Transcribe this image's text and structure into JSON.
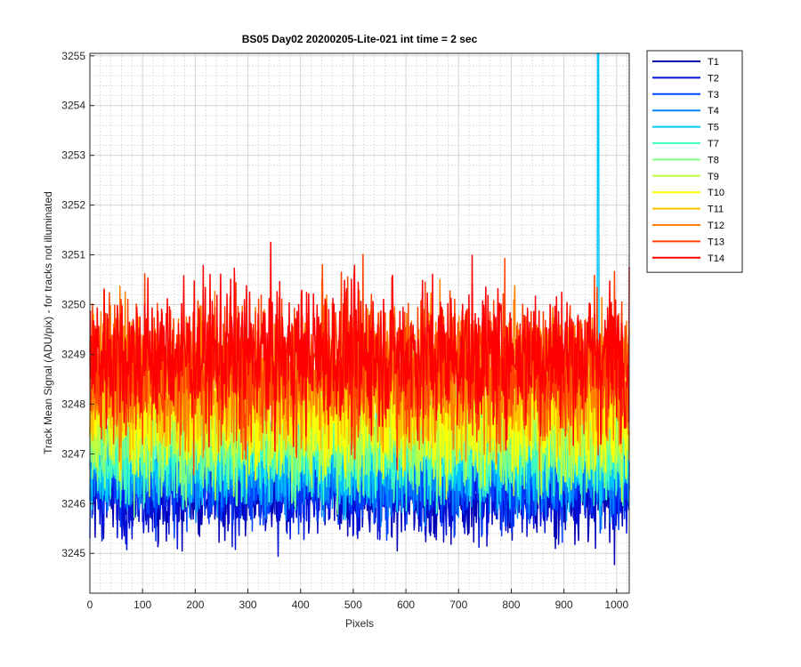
{
  "chart_data": {
    "type": "line",
    "title": "BS05 Day02 20200205-Lite-021 int time = 2 sec",
    "xlabel": "Pixels",
    "ylabel": "Track Mean Signal (ADU/pix) - for tracks not illuminated",
    "xlim": [
      0,
      1024
    ],
    "ylim": [
      3244.2,
      3255.05
    ],
    "xticks": [
      0,
      100,
      200,
      300,
      400,
      500,
      600,
      700,
      800,
      900,
      1000
    ],
    "yticks": [
      3245,
      3246,
      3247,
      3248,
      3249,
      3250,
      3251,
      3252,
      3253,
      3254,
      3255
    ],
    "grid": true,
    "minor_grid": true,
    "legend_position": "outside-top-right",
    "num_points": 1024,
    "series": [
      {
        "name": "T1",
        "color": "#0000b4",
        "mean": 3246.2,
        "noise": 0.45
      },
      {
        "name": "T2",
        "color": "#0010d8",
        "mean": 3246.3,
        "noise": 0.45
      },
      {
        "name": "T3",
        "color": "#0040ff",
        "mean": 3246.5,
        "noise": 0.45
      },
      {
        "name": "T4",
        "color": "#0088ff",
        "mean": 3246.7,
        "noise": 0.45
      },
      {
        "name": "T5",
        "color": "#00c8ff",
        "mean": 3246.9,
        "noise": 0.45,
        "spike": {
          "x": 965,
          "y": 3255.05
        }
      },
      {
        "name": "T7",
        "color": "#40ffc0",
        "mean": 3247.1,
        "noise": 0.5
      },
      {
        "name": "T8",
        "color": "#80ff80",
        "mean": 3247.3,
        "noise": 0.5
      },
      {
        "name": "T9",
        "color": "#c0ff40",
        "mean": 3247.6,
        "noise": 0.55
      },
      {
        "name": "T10",
        "color": "#ffff00",
        "mean": 3247.9,
        "noise": 0.6
      },
      {
        "name": "T11",
        "color": "#ffc000",
        "mean": 3248.3,
        "noise": 0.6
      },
      {
        "name": "T12",
        "color": "#ff8000",
        "mean": 3248.6,
        "noise": 0.7
      },
      {
        "name": "T13",
        "color": "#ff4000",
        "mean": 3248.8,
        "noise": 0.7
      },
      {
        "name": "T14",
        "color": "#ff0000",
        "mean": 3249.0,
        "noise": 0.7
      }
    ]
  }
}
